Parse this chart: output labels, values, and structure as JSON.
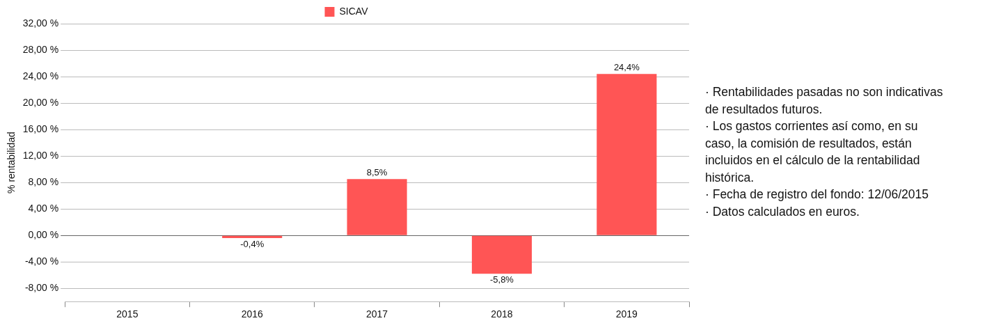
{
  "chart_data": {
    "type": "bar",
    "ylabel": "% rentabilidad",
    "categories": [
      "2015",
      "2016",
      "2017",
      "2018",
      "2019"
    ],
    "series": [
      {
        "name": "SICAV",
        "color": "#ff5555",
        "values": [
          null,
          -0.4,
          8.5,
          -5.8,
          24.4
        ]
      }
    ],
    "value_labels": [
      null,
      "-0,4%",
      "8,5%",
      "-5,8%",
      "24,4%"
    ],
    "ylim": [
      -10,
      32
    ],
    "yticks": [
      {
        "value": -8,
        "label": "-8,00 %"
      },
      {
        "value": -4,
        "label": "-4,00 %"
      },
      {
        "value": 0,
        "label": "0,00 %"
      },
      {
        "value": 4,
        "label": "4,00 %"
      },
      {
        "value": 8,
        "label": "8,00 %"
      },
      {
        "value": 12,
        "label": "12,00 %"
      },
      {
        "value": 16,
        "label": "16,00 %"
      },
      {
        "value": 20,
        "label": "20,00 %"
      },
      {
        "value": 24,
        "label": "24,00 %"
      },
      {
        "value": 28,
        "label": "28,00 %"
      },
      {
        "value": 32,
        "label": "32,00 %"
      }
    ],
    "grid": "y",
    "legend": "top",
    "annotations": [
      "· Rentabilidades pasadas no son indicativas de resultados futuros.",
      "· Los gastos corrientes así como, en su caso, la comisión de resultados, están incluidos en el cálculo de la rentabilidad histórica.",
      "· Fecha de registro del fondo: 12/06/2015",
      "· Datos calculados en euros."
    ]
  }
}
